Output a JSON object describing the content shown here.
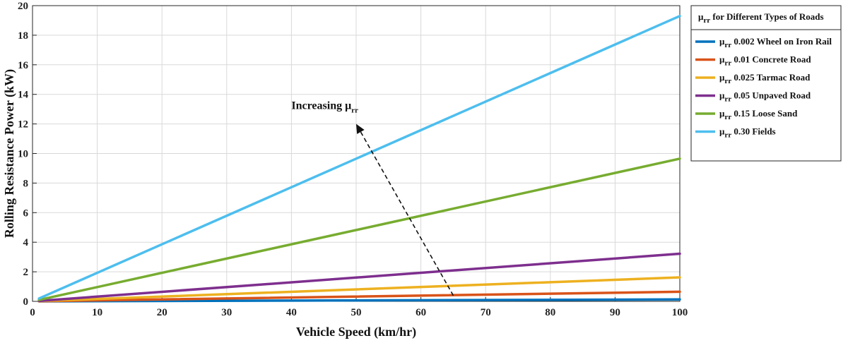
{
  "chart_data": {
    "type": "line",
    "xlabel": "Vehicle Speed (km/hr)",
    "ylabel": "Rolling Resistance Power (kW)",
    "xlim": [
      0,
      100
    ],
    "ylim": [
      0,
      20
    ],
    "xticks": [
      "0",
      "10",
      "20",
      "30",
      "40",
      "50",
      "60",
      "70",
      "80",
      "90",
      "100"
    ],
    "yticks": [
      "0",
      "2",
      "4",
      "6",
      "8",
      "10",
      "12",
      "14",
      "16",
      "18",
      "20"
    ],
    "grid": true,
    "legend": {
      "title_symbol": "μ",
      "title_sub": "rr",
      "title_text": " for Different Types of Roads",
      "placement": "right"
    },
    "series": [
      {
        "symbol": "μ",
        "sub": "rr",
        "name": " 0.002 Wheel on Iron Rail",
        "color": "#0072BD",
        "x": [
          1,
          100
        ],
        "y": [
          0.002,
          0.13
        ]
      },
      {
        "symbol": "μ",
        "sub": "rr",
        "name": " 0.01 Concrete Road",
        "color": "#D95319",
        "x": [
          1,
          100
        ],
        "y": [
          0.006,
          0.65
        ]
      },
      {
        "symbol": "μ",
        "sub": "rr",
        "name": " 0.025 Tarmac Road",
        "color": "#EDB120",
        "x": [
          1,
          100
        ],
        "y": [
          0.016,
          1.62
        ]
      },
      {
        "symbol": "μ",
        "sub": "rr",
        "name": " 0.05 Unpaved Road",
        "color": "#7E2F8E",
        "x": [
          1,
          100
        ],
        "y": [
          0.032,
          3.22
        ]
      },
      {
        "symbol": "μ",
        "sub": "rr",
        "name": " 0.15 Loose Sand",
        "color": "#77AC30",
        "x": [
          1,
          100
        ],
        "y": [
          0.097,
          9.65
        ]
      },
      {
        "symbol": "μ",
        "sub": "rr",
        "name": " 0.30 Fields",
        "color": "#4DBEEE",
        "x": [
          1,
          100
        ],
        "y": [
          0.193,
          19.3
        ]
      }
    ],
    "annotation": {
      "text": "Increasing μ",
      "sub": "rr",
      "arrow_from": [
        65,
        0.4
      ],
      "arrow_to": [
        50,
        12.0
      ],
      "text_at": [
        40,
        13.0
      ]
    }
  }
}
